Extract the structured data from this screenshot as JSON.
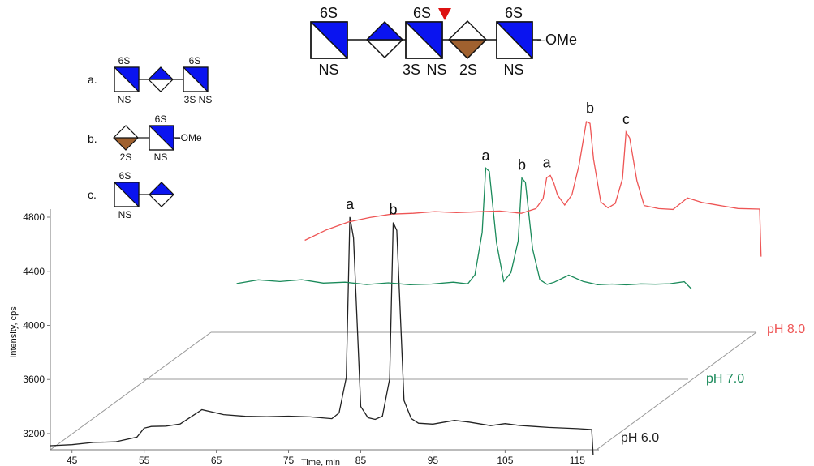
{
  "chart_data": {
    "type": "line",
    "xlabel": "Time, min",
    "ylabel": "Intensity, cps",
    "x_ticks": [
      "45",
      "55",
      "65",
      "75",
      "85",
      "95",
      "105",
      "115"
    ],
    "y_ticks": [
      "3200",
      "3600",
      "4000",
      "4400",
      "4800"
    ],
    "xlim": [
      42,
      118
    ],
    "ylim": [
      3080,
      4860
    ],
    "grid": false,
    "series": [
      {
        "name": "pH 6.0",
        "color": "#222222",
        "x": [
          42,
          45,
          48,
          51,
          54,
          55,
          56,
          58,
          60,
          63,
          66,
          69,
          72,
          75,
          78,
          81,
          82,
          83,
          83.5,
          84,
          85,
          86,
          87,
          88,
          89,
          89.5,
          90,
          91,
          92,
          93,
          95,
          98,
          100,
          103,
          105,
          107,
          109,
          111,
          113,
          115,
          117,
          117.2
        ],
        "y": [
          3110,
          3120,
          3130,
          3140,
          3170,
          3240,
          3250,
          3260,
          3270,
          3380,
          3340,
          3330,
          3320,
          3330,
          3320,
          3310,
          3350,
          3620,
          4800,
          4650,
          3400,
          3320,
          3300,
          3330,
          3600,
          4760,
          4700,
          3450,
          3310,
          3280,
          3270,
          3300,
          3280,
          3260,
          3270,
          3260,
          3250,
          3250,
          3240,
          3240,
          3230,
          3040
        ]
      },
      {
        "name": "pH 7.0",
        "color": "#1a8a5a",
        "x": [
          55,
          58,
          61,
          64,
          67,
          70,
          73,
          76,
          79,
          82,
          85,
          87,
          88,
          89,
          89.5,
          90,
          91,
          92,
          93,
          94,
          94.5,
          95,
          96,
          97,
          98,
          99,
          101,
          103,
          105,
          107,
          109,
          111,
          113,
          115,
          117,
          118
        ],
        "y": [
          3800,
          3830,
          3810,
          3830,
          3800,
          3810,
          3790,
          3810,
          3790,
          3800,
          3810,
          3800,
          3860,
          4180,
          4650,
          4630,
          4100,
          3820,
          3880,
          4120,
          4580,
          4550,
          4050,
          3830,
          3790,
          3810,
          3860,
          3820,
          3790,
          3800,
          3790,
          3800,
          3790,
          3800,
          3810,
          3760
        ]
      },
      {
        "name": "pH 8.0",
        "color": "#ee5555",
        "x": [
          55,
          58,
          61,
          64,
          67,
          70,
          73,
          76,
          79,
          82,
          85,
          86,
          87,
          88,
          88.5,
          89,
          89.5,
          90,
          91,
          92,
          93,
          94,
          94.5,
          95,
          96,
          97,
          98,
          99,
          99.5,
          100,
          101,
          102,
          104,
          106,
          108,
          110,
          112,
          115,
          118,
          118.2
        ],
        "y": [
          3760,
          3840,
          3890,
          3930,
          3950,
          3960,
          3970,
          3970,
          3970,
          3980,
          3960,
          3980,
          3990,
          4070,
          4220,
          4240,
          4180,
          4100,
          4020,
          4100,
          4320,
          4640,
          4620,
          4360,
          4040,
          4000,
          4030,
          4220,
          4560,
          4520,
          4200,
          4020,
          3990,
          3990,
          4070,
          4040,
          4020,
          4000,
          3990,
          3640
        ]
      }
    ],
    "peak_labels": [
      {
        "series": 0,
        "text": "a",
        "x": 83.5,
        "y": 4800
      },
      {
        "series": 0,
        "text": "b",
        "x": 89.5,
        "y": 4760
      },
      {
        "series": 1,
        "text": "a",
        "x": 89.5,
        "y": 4650
      },
      {
        "series": 1,
        "text": "b",
        "x": 94.5,
        "y": 4580
      },
      {
        "series": 2,
        "text": "a",
        "x": 88.5,
        "y": 4240
      },
      {
        "series": 2,
        "text": "b",
        "x": 94.5,
        "y": 4640
      },
      {
        "series": 2,
        "text": "c",
        "x": 99.5,
        "y": 4560
      }
    ]
  },
  "glycans": {
    "main": {
      "top_labels": [
        "6S",
        "6S",
        "6S"
      ],
      "bottom_labels": [
        "NS",
        "3S",
        "NS",
        "2S",
        "NS"
      ],
      "end_label": "–OMe",
      "cleavage_color": "#dd1111"
    },
    "a": {
      "label": "a.",
      "top": [
        "6S",
        "6S"
      ],
      "bottom": [
        "NS",
        "3S NS"
      ]
    },
    "b": {
      "label": "b.",
      "top": [
        "6S"
      ],
      "bottom": [
        "2S",
        "NS"
      ],
      "end": "–OMe"
    },
    "c": {
      "label": "c.",
      "top": [
        "6S"
      ],
      "bottom": [
        "NS"
      ]
    },
    "colors": {
      "blue": "#0a14f0",
      "brown": "#a0612f"
    }
  }
}
